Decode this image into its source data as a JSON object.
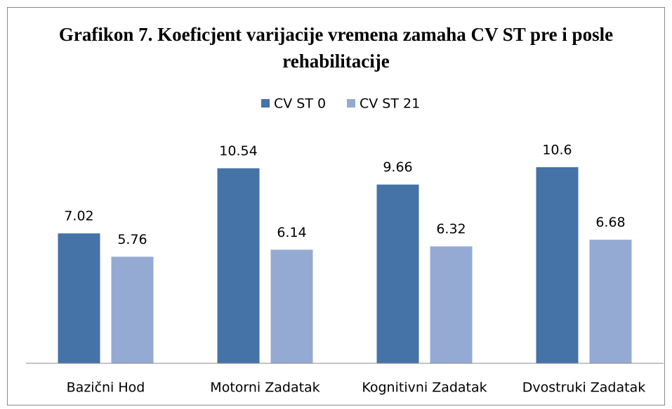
{
  "chart_data": {
    "type": "bar",
    "title": "Grafikon 7. Koeficjent varijacije vremena zamaha CV ST pre i posle rehabilitacije",
    "categories": [
      "Bazični Hod",
      "Motorni Zadatak",
      "Kognitivni Zadatak",
      "Dvostruki Zadatak"
    ],
    "series": [
      {
        "name": "CV ST 0",
        "color": "#4572a7",
        "values": [
          7.02,
          10.54,
          9.66,
          10.6
        ]
      },
      {
        "name": "CV ST 21",
        "color": "#95aad3",
        "values": [
          5.76,
          6.14,
          6.32,
          6.68
        ]
      }
    ],
    "ylim": [
      0,
      12
    ],
    "legend": "top"
  }
}
